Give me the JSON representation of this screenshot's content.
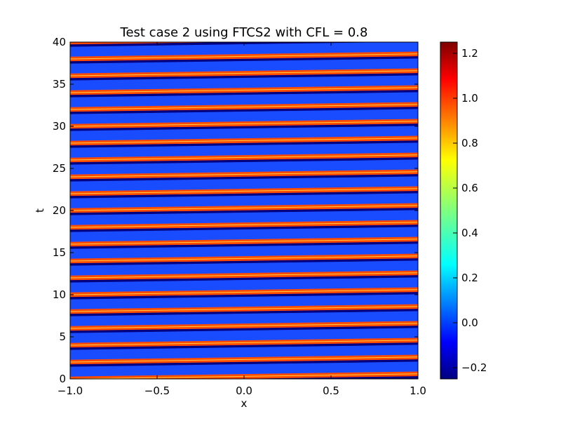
{
  "chart_data": {
    "type": "heatmap",
    "title": "Test case 2 using FTCS2 with CFL = 0.8",
    "xlabel": "x",
    "ylabel": "t",
    "xlim": [
      -1.0,
      1.0
    ],
    "ylim": [
      0,
      40
    ],
    "x_ticks": [
      "−1.0",
      "−0.5",
      "0.0",
      "0.5",
      "1.0"
    ],
    "y_ticks": [
      "0",
      "5",
      "10",
      "15",
      "20",
      "25",
      "30",
      "35",
      "40"
    ],
    "colorbar": {
      "colormap": "jet",
      "range": [
        -0.25,
        1.25
      ],
      "ticks": [
        "−0.2",
        "0.0",
        "0.2",
        "0.4",
        "0.6",
        "0.8",
        "1.0",
        "1.2"
      ],
      "tick_values": [
        -0.2,
        0.0,
        0.2,
        0.4,
        0.6,
        0.8,
        1.0,
        1.2
      ]
    },
    "field": {
      "background_value": 0.0,
      "band_peak_value": 1.05,
      "band_period_t": 2.0,
      "band_drift_t_per_unit_x": 0.3,
      "band_width_t": 0.55
    },
    "grid": false
  },
  "colors": {
    "background": "#ffffff",
    "axis": "#000000",
    "field_background": "#1a4cff"
  }
}
